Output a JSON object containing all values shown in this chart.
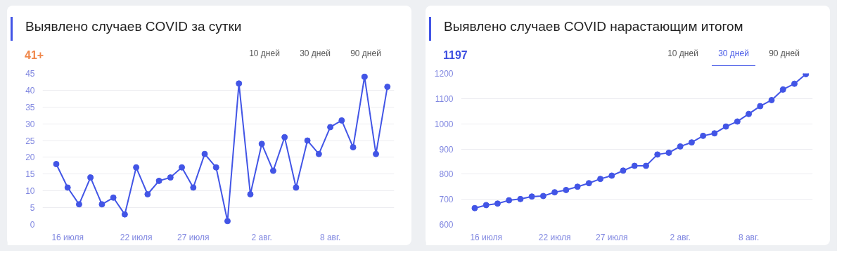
{
  "chart_data": [
    {
      "type": "line",
      "title": "Выявлено случаев COVID за сутки",
      "annotations": [
        "41+",
        "10 дней",
        "30 дней",
        "90 дней"
      ],
      "categories": [
        null,
        "16 июля",
        null,
        null,
        null,
        null,
        null,
        "22 июля",
        null,
        null,
        null,
        null,
        "27 июля",
        null,
        null,
        null,
        null,
        null,
        "2 авг.",
        null,
        null,
        null,
        null,
        null,
        "8 авг.",
        null,
        null,
        null,
        null,
        null
      ],
      "ylim": [
        0,
        45
      ],
      "yticks": [
        0,
        5,
        10,
        15,
        20,
        25,
        30,
        35,
        40,
        45
      ],
      "grid": "y",
      "marker": "circle",
      "line_style": "solid",
      "series": [
        {
          "color": "#4255e6",
          "values": [
            18,
            11,
            6,
            14,
            6,
            8,
            3,
            17,
            9,
            13,
            14,
            17,
            11,
            21,
            17,
            1,
            42,
            9,
            24,
            16,
            26,
            11,
            25,
            21,
            29,
            31,
            23,
            44,
            21,
            41
          ]
        }
      ]
    },
    {
      "type": "line",
      "title": "Выявлено случаев COVID нарастающим итогом",
      "annotations": [
        "1197",
        "10 дней",
        "30 дней",
        "90 дней"
      ],
      "categories": [
        null,
        "16 июля",
        null,
        null,
        null,
        null,
        null,
        "22 июля",
        null,
        null,
        null,
        null,
        "27 июля",
        null,
        null,
        null,
        null,
        null,
        "2 авг.",
        null,
        null,
        null,
        null,
        null,
        "8 авг.",
        null,
        null,
        null,
        null,
        null
      ],
      "ylim": [
        600,
        1200
      ],
      "yticks": [
        600,
        700,
        800,
        900,
        1000,
        1100,
        1200
      ],
      "grid": "y",
      "marker": "circle",
      "line_style": "solid",
      "series": [
        {
          "color": "#4255e6",
          "values": [
            665,
            677,
            683,
            696,
            701,
            711,
            713,
            728,
            737,
            750,
            764,
            781,
            794,
            814,
            833,
            833,
            878,
            885,
            910,
            926,
            952,
            962,
            989,
            1009,
            1039,
            1070,
            1094,
            1136,
            1159,
            1197
          ]
        }
      ]
    }
  ]
}
